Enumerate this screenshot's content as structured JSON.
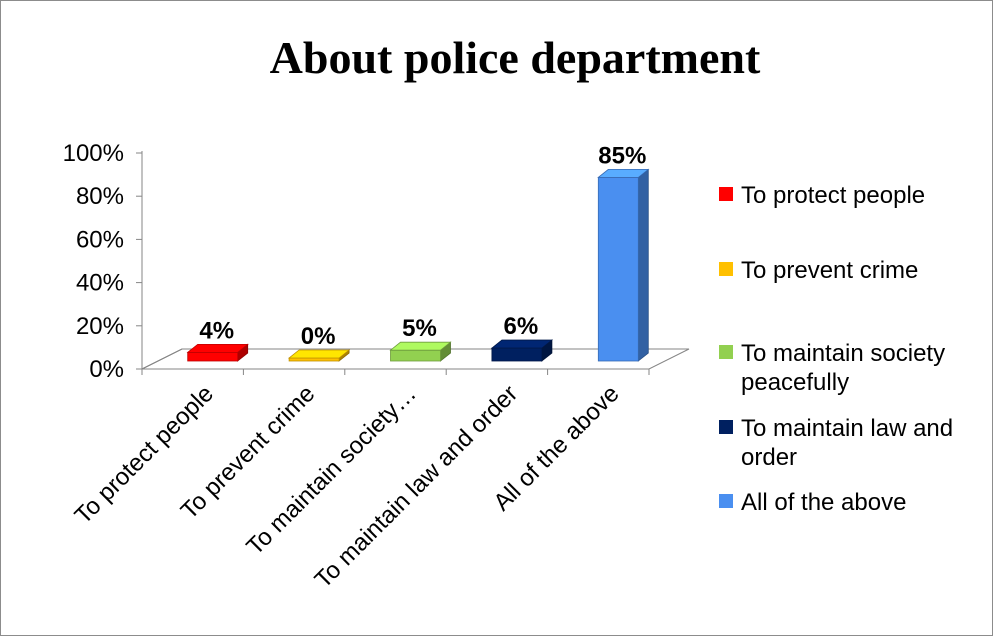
{
  "chart_data": {
    "type": "bar",
    "title": "About police department",
    "categories": [
      "To protect people",
      "To prevent crime",
      "To maintain society…",
      "To maintain law and order",
      "All of the above"
    ],
    "values": [
      4,
      0,
      5,
      6,
      85
    ],
    "data_labels": [
      "4%",
      "0%",
      "5%",
      "6%",
      "85%"
    ],
    "colors": [
      "#ff0000",
      "#ffc000",
      "#92d050",
      "#002060",
      "#4a8ff0"
    ],
    "ylim": [
      0,
      100
    ],
    "yticks": [
      0,
      20,
      40,
      60,
      80,
      100
    ],
    "ytick_labels": [
      "0%",
      "20%",
      "40%",
      "60%",
      "80%",
      "100%"
    ],
    "xlabel": "",
    "ylabel": "",
    "grid": false,
    "legend_position": "right",
    "legend": [
      {
        "label": "To protect people",
        "color": "#ff0000"
      },
      {
        "label": "To prevent crime",
        "color": "#ffc000"
      },
      {
        "label": "To maintain society peacefully",
        "color": "#92d050"
      },
      {
        "label": "To maintain law and order",
        "color": "#002060"
      },
      {
        "label": "All of the above",
        "color": "#4a8ff0"
      }
    ]
  }
}
